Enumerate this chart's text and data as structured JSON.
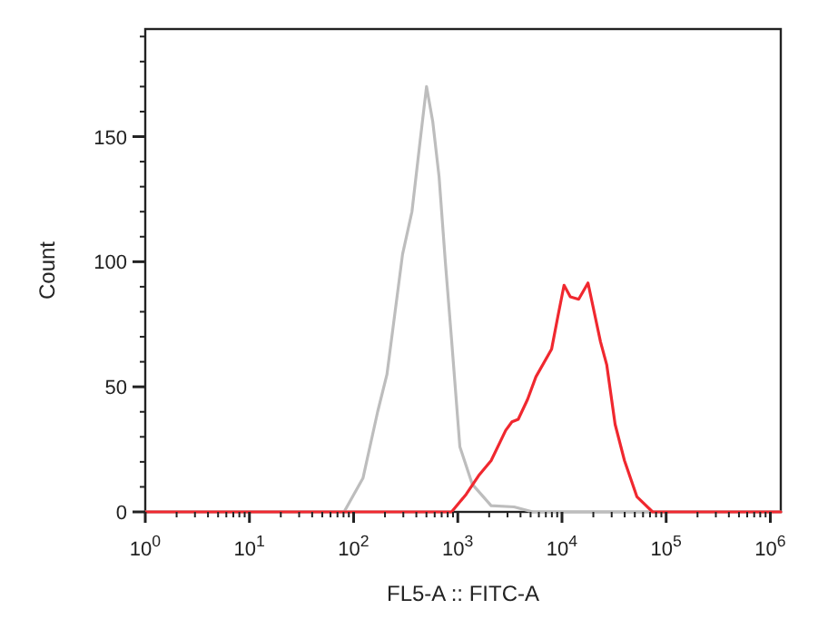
{
  "chart_data": {
    "type": "line",
    "xlabel": "FL5-A :: FITC-A",
    "ylabel": "Count",
    "log": "x",
    "xlim": [
      1,
      1260000
    ],
    "ylim": [
      0,
      193
    ],
    "xticks": [
      {
        "value": 1,
        "label": "10$^{0}$"
      },
      {
        "value": 2,
        "label": null
      },
      {
        "value": 3,
        "label": null
      },
      {
        "value": 4,
        "label": null
      },
      {
        "value": 5,
        "label": null
      },
      {
        "value": 6,
        "label": null
      },
      {
        "value": 7,
        "label": null
      },
      {
        "value": 8,
        "label": null
      },
      {
        "value": 9,
        "label": null
      },
      {
        "value": 10,
        "label": "10$^{1}$"
      },
      {
        "value": 20,
        "label": null
      },
      {
        "value": 30,
        "label": null
      },
      {
        "value": 40,
        "label": null
      },
      {
        "value": 50,
        "label": null
      },
      {
        "value": 60,
        "label": null
      },
      {
        "value": 70,
        "label": null
      },
      {
        "value": 80,
        "label": null
      },
      {
        "value": 90,
        "label": null
      },
      {
        "value": 100,
        "label": "10$^{2}$"
      },
      {
        "value": 200,
        "label": null
      },
      {
        "value": 300,
        "label": null
      },
      {
        "value": 400,
        "label": null
      },
      {
        "value": 500,
        "label": null
      },
      {
        "value": 600,
        "label": null
      },
      {
        "value": 700,
        "label": null
      },
      {
        "value": 800,
        "label": null
      },
      {
        "value": 900,
        "label": null
      },
      {
        "value": 1000,
        "label": "10$^{3}$"
      },
      {
        "value": 2000,
        "label": null
      },
      {
        "value": 3000,
        "label": null
      },
      {
        "value": 4000,
        "label": null
      },
      {
        "value": 5000,
        "label": null
      },
      {
        "value": 6000,
        "label": null
      },
      {
        "value": 7000,
        "label": null
      },
      {
        "value": 8000,
        "label": null
      },
      {
        "value": 9000,
        "label": null
      },
      {
        "value": 10000,
        "label": "10$^{4}$"
      },
      {
        "value": 20000,
        "label": null
      },
      {
        "value": 30000,
        "label": null
      },
      {
        "value": 40000,
        "label": null
      },
      {
        "value": 50000,
        "label": null
      },
      {
        "value": 60000,
        "label": null
      },
      {
        "value": 70000,
        "label": null
      },
      {
        "value": 80000,
        "label": null
      },
      {
        "value": 90000,
        "label": null
      },
      {
        "value": 100000,
        "label": "10$^{5}$"
      },
      {
        "value": 200000,
        "label": null
      },
      {
        "value": 300000,
        "label": null
      },
      {
        "value": 400000,
        "label": null
      },
      {
        "value": 500000,
        "label": null
      },
      {
        "value": 600000,
        "label": null
      },
      {
        "value": 700000,
        "label": null
      },
      {
        "value": 800000,
        "label": null
      },
      {
        "value": 900000,
        "label": null
      },
      {
        "value": 1000000,
        "label": "10$^{6}$"
      }
    ],
    "yticks": [
      0,
      {
        "value": 10,
        "label": null
      },
      {
        "value": 20,
        "label": null
      },
      {
        "value": 30,
        "label": null
      },
      {
        "value": 40,
        "label": null
      },
      50,
      {
        "value": 60,
        "label": null
      },
      {
        "value": 70,
        "label": null
      },
      {
        "value": 80,
        "label": null
      },
      {
        "value": 90,
        "label": null
      },
      100,
      {
        "value": 110,
        "label": null
      },
      {
        "value": 120,
        "label": null
      },
      {
        "value": 130,
        "label": null
      },
      {
        "value": 140,
        "label": null
      },
      150,
      {
        "value": 160,
        "label": null
      },
      {
        "value": 170,
        "label": null
      },
      {
        "value": 180,
        "label": null
      },
      {
        "value": 190,
        "label": null
      }
    ],
    "series": [
      {
        "color": "#bdbdbd",
        "x": [
          1,
          81,
          123,
          170,
          209,
          295,
          363,
          437,
          501,
          575,
          661,
          759,
          871,
          1047,
          1380,
          2089,
          3467,
          5248,
          1260000
        ],
        "values": [
          0,
          0,
          13.5,
          40,
          55,
          103,
          120,
          149,
          170,
          156,
          134,
          100,
          69,
          26,
          11,
          2.5,
          2,
          0,
          0
        ]
      },
      {
        "color": "#f0282f",
        "x": [
          1,
          871,
          1202,
          1585,
          2089,
          2884,
          3311,
          3802,
          4677,
          5623,
          7943,
          9120,
          10470,
          12020,
          14450,
          17780,
          23440,
          26920,
          32360,
          39810,
          52480,
          74130,
          1260000
        ],
        "values": [
          0,
          0,
          7,
          14.5,
          20.5,
          32.6,
          36,
          37,
          45,
          54,
          65,
          78,
          90.6,
          86,
          85,
          91.5,
          68,
          58.7,
          35,
          20.5,
          6,
          0,
          0
        ]
      }
    ]
  }
}
